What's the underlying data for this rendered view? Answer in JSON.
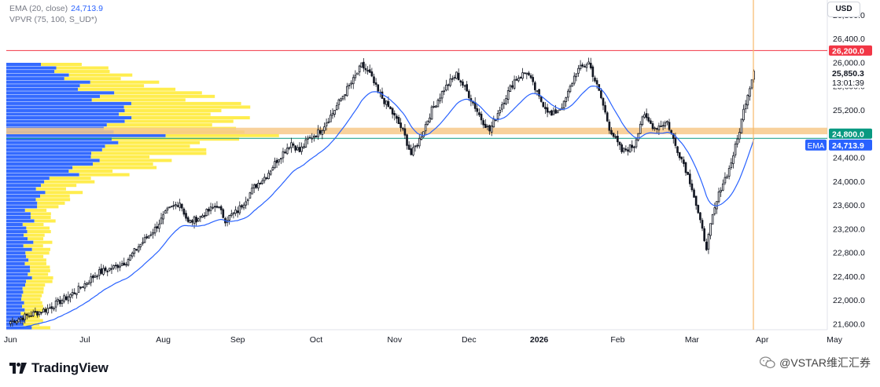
{
  "legend": {
    "ema_label": "EMA (20, close)",
    "ema_value": "24,713.9",
    "vpvr_label": "VPVR (75, 100, S_UD*)"
  },
  "currency_button": "USD",
  "branding": {
    "logo_text": "TradingView",
    "watermark_text": "@VSTAR维汇汇券"
  },
  "colors": {
    "up": "#ffffff",
    "down": "#131722",
    "ema": "#2962ff",
    "resistance": "#f23645",
    "support": "#089981",
    "zone": "#f7c98b",
    "vp_up": "#2962ff",
    "vp_down": "#ffeb3b",
    "cursor": "#f7b96b"
  },
  "chart_data": {
    "type": "candlestick",
    "x_ticks": [
      "Jun",
      "Jul",
      "Aug",
      "Sep",
      "Oct",
      "Nov",
      "Dec",
      "2026",
      "Feb",
      "Mar",
      "Apr",
      "May"
    ],
    "y_ticks": [
      "26,800.0",
      "26,400.0",
      "26,000.0",
      "25,600.0",
      "25,200.0",
      "24,800.0",
      "24,400.0",
      "24,000.0",
      "23,600.0",
      "23,200.0",
      "22,800.0",
      "22,400.0",
      "22,000.0",
      "21,600.0"
    ],
    "ylim": [
      21500,
      27050
    ],
    "price_labels": {
      "resistance": "26,200.0",
      "current_price": "25,850.3",
      "countdown": "13:01:39",
      "support": "24,800.0",
      "ema_tag": "EMA",
      "ema_value": "24,713.9"
    },
    "levels": {
      "resistance": 26200,
      "support": 24800,
      "ema_last": 24713.9,
      "current": 25850.3,
      "zone_low": 24790,
      "zone_high": 24900
    },
    "price_path": [
      [
        0,
        21640
      ],
      [
        18,
        21850
      ],
      [
        32,
        22150
      ],
      [
        42,
        22450
      ],
      [
        50,
        22550
      ],
      [
        56,
        22650
      ],
      [
        62,
        22900
      ],
      [
        70,
        23200
      ],
      [
        76,
        23500
      ],
      [
        82,
        23650
      ],
      [
        86,
        23300
      ],
      [
        92,
        23400
      ],
      [
        100,
        23600
      ],
      [
        104,
        23350
      ],
      [
        110,
        23500
      ],
      [
        118,
        23900
      ],
      [
        124,
        24100
      ],
      [
        130,
        24400
      ],
      [
        136,
        24650
      ],
      [
        140,
        24500
      ],
      [
        144,
        24700
      ],
      [
        150,
        24850
      ],
      [
        156,
        25150
      ],
      [
        162,
        25500
      ],
      [
        166,
        25700
      ],
      [
        170,
        25950
      ],
      [
        174,
        25800
      ],
      [
        178,
        25500
      ],
      [
        184,
        25200
      ],
      [
        190,
        24850
      ],
      [
        194,
        24450
      ],
      [
        198,
        24700
      ],
      [
        204,
        25200
      ],
      [
        210,
        25550
      ],
      [
        216,
        25800
      ],
      [
        222,
        25450
      ],
      [
        228,
        25050
      ],
      [
        232,
        24850
      ],
      [
        238,
        25300
      ],
      [
        244,
        25700
      ],
      [
        250,
        25850
      ],
      [
        256,
        25400
      ],
      [
        262,
        25100
      ],
      [
        268,
        25300
      ],
      [
        274,
        25850
      ],
      [
        280,
        26000
      ],
      [
        286,
        25400
      ],
      [
        290,
        24900
      ],
      [
        296,
        24500
      ],
      [
        302,
        24600
      ],
      [
        306,
        25100
      ],
      [
        312,
        24900
      ],
      [
        318,
        25000
      ],
      [
        322,
        24600
      ],
      [
        326,
        24300
      ],
      [
        330,
        23900
      ],
      [
        334,
        23300
      ],
      [
        337,
        22900
      ],
      [
        340,
        23400
      ],
      [
        344,
        23900
      ],
      [
        348,
        24200
      ],
      [
        352,
        24700
      ],
      [
        356,
        25350
      ],
      [
        360,
        25850
      ]
    ]
  }
}
